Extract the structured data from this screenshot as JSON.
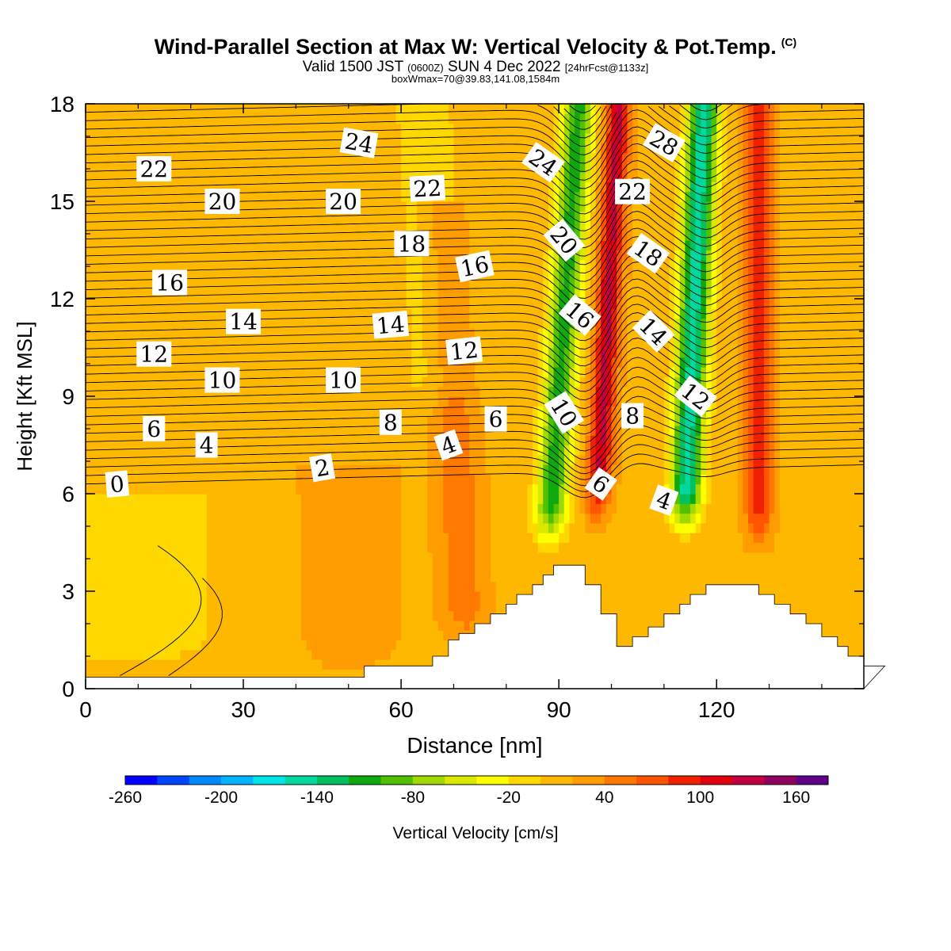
{
  "title": {
    "main": "Wind-Parallel Section at Max W: Vertical Velocity & Pot.Temp.",
    "copyright": "(C)",
    "valid_prefix": "Valid 1500 JST",
    "valid_utc": "(0600Z)",
    "valid_date": "SUN 4 Dec 2022",
    "forecast": "[24hrFcst@1133z]",
    "box": "boxWmax=70@39.83,141.08,1584m"
  },
  "chart_data": {
    "type": "heatmap",
    "xlabel": "Distance [nm]",
    "ylabel": "Height [Kft MSL]",
    "xlim": [
      0,
      148
    ],
    "ylim": [
      0,
      18
    ],
    "xticks": [
      0,
      30,
      60,
      90,
      120
    ],
    "yticks": [
      0,
      3,
      6,
      9,
      12,
      15,
      18
    ],
    "colorbar": {
      "label": "Vertical Velocity [cm/s]",
      "tick_labels": [
        "-260",
        "-200",
        "-140",
        "-80",
        "-20",
        "40",
        "100",
        "160"
      ],
      "colors": [
        "#0000ff",
        "#0044ff",
        "#0088ff",
        "#00b4ff",
        "#00e6e6",
        "#00d8a0",
        "#00c060",
        "#10a810",
        "#50c000",
        "#a0d800",
        "#d8e800",
        "#ffff00",
        "#ffd800",
        "#ffb800",
        "#ff9c00",
        "#ff7800",
        "#ff5400",
        "#f02000",
        "#e00010",
        "#c00040",
        "#900060",
        "#600088"
      ]
    },
    "terrain_kft": [
      0.35,
      0.35,
      0.35,
      0.35,
      0.35,
      0.35,
      0.35,
      0.35,
      0.35,
      0.35,
      0.35,
      0.35,
      0.35,
      0.35,
      0.35,
      0.35,
      0.35,
      0.35,
      0.35,
      0.35,
      0.35,
      0.35,
      0.35,
      0.35,
      0.35,
      0.35,
      0.35,
      0.35,
      0.35,
      0.35,
      0.35,
      0.35,
      0.35,
      0.35,
      0.35,
      0.35,
      0.35,
      0.35,
      0.35,
      0.35,
      0.35,
      0.35,
      0.35,
      0.35,
      0.35,
      0.35,
      0.35,
      0.35,
      0.35,
      0.35,
      0.35,
      0.35,
      0.35,
      0.7,
      0.7,
      0.7,
      0.7,
      0.7,
      0.7,
      0.7,
      0.7,
      0.7,
      0.7,
      0.7,
      0.7,
      0.7,
      1.0,
      1.0,
      1.0,
      1.5,
      1.5,
      1.7,
      1.7,
      1.7,
      2.0,
      2.0,
      2.0,
      2.3,
      2.3,
      2.3,
      2.6,
      2.6,
      2.9,
      2.9,
      2.9,
      3.2,
      3.2,
      3.5,
      3.5,
      3.8,
      3.8,
      3.8,
      3.8,
      3.8,
      3.8,
      3.2,
      3.2,
      3.2,
      2.3,
      2.3,
      2.3,
      1.3,
      1.3,
      1.3,
      1.6,
      1.6,
      1.6,
      1.9,
      1.9,
      1.9,
      2.3,
      2.3,
      2.3,
      2.6,
      2.6,
      2.9,
      2.9,
      2.9,
      3.2,
      3.2,
      3.2,
      3.2,
      3.2,
      3.2,
      3.2,
      3.2,
      3.2,
      3.2,
      2.9,
      2.9,
      2.9,
      2.6,
      2.6,
      2.6,
      2.3,
      2.3,
      2.3,
      2.0,
      2.0,
      2.0,
      1.6,
      1.6,
      1.6,
      1.3,
      1.3,
      1.0,
      1.0,
      1.0,
      0.7,
      0.7,
      0.7,
      0.7
    ],
    "vertical_velocity_cm_s": {
      "background": 15,
      "features": [
        {
          "x_center": 90.0,
          "x_width": 3.0,
          "z_bottom": 4.0,
          "z_top": 18,
          "slant": 0.42,
          "value": -110
        },
        {
          "x_center": 98.5,
          "x_width": 2.2,
          "z_bottom": 4.8,
          "z_top": 18,
          "slant": 0.32,
          "value": 125
        },
        {
          "x_center": 115.0,
          "x_width": 3.0,
          "z_bottom": 4.5,
          "z_top": 18,
          "slant": 0.28,
          "value": -150
        },
        {
          "x_center": 128.0,
          "x_width": 2.5,
          "z_bottom": 4.0,
          "z_top": 18,
          "slant": 0.0,
          "value": 95
        },
        {
          "x_center": 70.0,
          "x_width": 4.0,
          "z_bottom": 1.0,
          "z_top": 15,
          "slant": -0.3,
          "value": 55
        },
        {
          "x_center": 67.0,
          "x_width": 7.0,
          "z_bottom": 8.0,
          "z_top": 18,
          "slant": -0.3,
          "value": -10
        },
        {
          "x_center": 8.0,
          "x_width": 18.0,
          "z_bottom": 0,
          "z_top": 6,
          "slant": 0.0,
          "value": -15
        },
        {
          "x_center": 50.0,
          "x_width": 8.0,
          "z_bottom": 0.3,
          "z_top": 7,
          "slant": 0.0,
          "value": 40
        }
      ]
    },
    "theta_contour_labels": [
      {
        "text": "22",
        "x": 13,
        "y": 16.0,
        "angle": 0
      },
      {
        "text": "20",
        "x": 26,
        "y": 15.0,
        "angle": 0
      },
      {
        "text": "16",
        "x": 16,
        "y": 12.5,
        "angle": 0
      },
      {
        "text": "14",
        "x": 30,
        "y": 11.3,
        "angle": 0
      },
      {
        "text": "12",
        "x": 13,
        "y": 10.3,
        "angle": 0
      },
      {
        "text": "10",
        "x": 26,
        "y": 9.5,
        "angle": 0
      },
      {
        "text": "6",
        "x": 13,
        "y": 8.0,
        "angle": 0
      },
      {
        "text": "4",
        "x": 23,
        "y": 7.5,
        "angle": 0
      },
      {
        "text": "0",
        "x": 6,
        "y": 6.3,
        "angle": -5
      },
      {
        "text": "24",
        "x": 52,
        "y": 16.8,
        "angle": 10
      },
      {
        "text": "20",
        "x": 49,
        "y": 15.0,
        "angle": 0
      },
      {
        "text": "22",
        "x": 65,
        "y": 15.4,
        "angle": -3
      },
      {
        "text": "18",
        "x": 62,
        "y": 13.7,
        "angle": 0
      },
      {
        "text": "16",
        "x": 74,
        "y": 13.0,
        "angle": -12
      },
      {
        "text": "14",
        "x": 58,
        "y": 11.2,
        "angle": -5
      },
      {
        "text": "12",
        "x": 72,
        "y": 10.4,
        "angle": -6
      },
      {
        "text": "10",
        "x": 49,
        "y": 9.5,
        "angle": 0
      },
      {
        "text": "8",
        "x": 58,
        "y": 8.2,
        "angle": 0
      },
      {
        "text": "6",
        "x": 78,
        "y": 8.3,
        "angle": 0
      },
      {
        "text": "4",
        "x": 69,
        "y": 7.5,
        "angle": -20
      },
      {
        "text": "2",
        "x": 45,
        "y": 6.8,
        "angle": -10
      },
      {
        "text": "24",
        "x": 87,
        "y": 16.2,
        "angle": 35
      },
      {
        "text": "20",
        "x": 91,
        "y": 13.8,
        "angle": 50
      },
      {
        "text": "16",
        "x": 94,
        "y": 11.5,
        "angle": 40
      },
      {
        "text": "10",
        "x": 91,
        "y": 8.5,
        "angle": 58
      },
      {
        "text": "6",
        "x": 98,
        "y": 6.3,
        "angle": 35
      },
      {
        "text": "28",
        "x": 110,
        "y": 16.8,
        "angle": 30
      },
      {
        "text": "22",
        "x": 104,
        "y": 15.3,
        "angle": 0
      },
      {
        "text": "18",
        "x": 107,
        "y": 13.4,
        "angle": 35
      },
      {
        "text": "14",
        "x": 108,
        "y": 11.0,
        "angle": 45
      },
      {
        "text": "8",
        "x": 104,
        "y": 8.4,
        "angle": 0
      },
      {
        "text": "12",
        "x": 116,
        "y": 9.0,
        "angle": 38
      },
      {
        "text": "4",
        "x": 110,
        "y": 5.8,
        "angle": 20
      }
    ],
    "grid": false
  }
}
